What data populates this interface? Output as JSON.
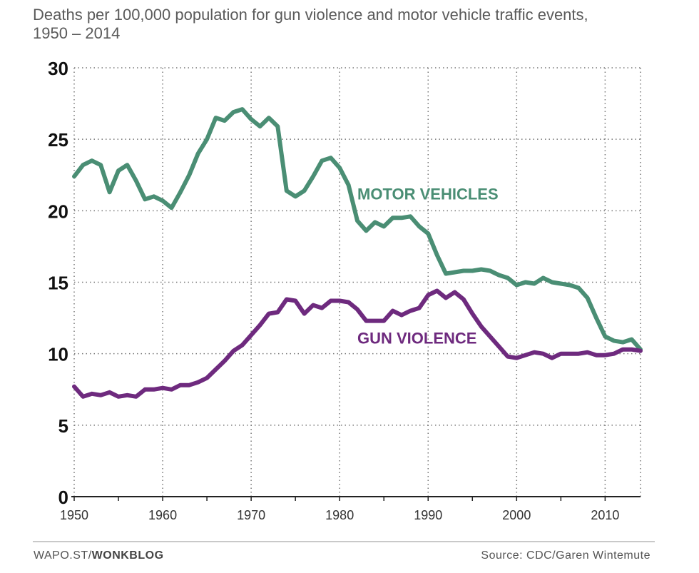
{
  "title": "Deaths per 100,000 population for gun violence and motor vehicle traffic events, 1950 – 2014",
  "footer": {
    "site": "WAPO.ST/",
    "blog": "WONKBLOG",
    "source": "Source: CDC/Garen Wintemute"
  },
  "colors": {
    "motor": "#4a8e74",
    "gun": "#6e2a7e",
    "axis": "#222222",
    "grid": "#777777"
  },
  "chart_data": {
    "type": "line",
    "title": "Deaths per 100,000 population for gun violence and motor vehicle traffic events, 1950 – 2014",
    "xlabel": "",
    "ylabel": "",
    "xlim": [
      1950,
      2014
    ],
    "ylim": [
      0,
      30
    ],
    "x_ticks": [
      1950,
      1960,
      1970,
      1980,
      1990,
      2000,
      2010
    ],
    "y_ticks": [
      0,
      5,
      10,
      15,
      20,
      25,
      30
    ],
    "grid": true,
    "series": [
      {
        "name": "MOTOR VEHICLES",
        "label_anchor": [
          1982,
          20.8
        ],
        "x": [
          1950,
          1951,
          1952,
          1953,
          1954,
          1955,
          1956,
          1957,
          1958,
          1959,
          1960,
          1961,
          1962,
          1963,
          1964,
          1965,
          1966,
          1967,
          1968,
          1969,
          1970,
          1971,
          1972,
          1973,
          1974,
          1975,
          1976,
          1977,
          1978,
          1979,
          1980,
          1981,
          1982,
          1983,
          1984,
          1985,
          1986,
          1987,
          1988,
          1989,
          1990,
          1991,
          1992,
          1993,
          1994,
          1995,
          1996,
          1997,
          1998,
          1999,
          2000,
          2001,
          2002,
          2003,
          2004,
          2005,
          2006,
          2007,
          2008,
          2009,
          2010,
          2011,
          2012,
          2013,
          2014
        ],
        "values": [
          22.4,
          23.2,
          23.5,
          23.2,
          21.3,
          22.8,
          23.2,
          22.1,
          20.8,
          21.0,
          20.7,
          20.2,
          21.3,
          22.5,
          24.0,
          25.0,
          26.5,
          26.3,
          26.9,
          27.1,
          26.4,
          25.9,
          26.5,
          25.9,
          21.4,
          21.0,
          21.4,
          22.4,
          23.5,
          23.7,
          23.0,
          21.8,
          19.3,
          18.6,
          19.2,
          18.9,
          19.5,
          19.5,
          19.6,
          18.9,
          18.4,
          16.9,
          15.6,
          15.7,
          15.8,
          15.8,
          15.9,
          15.8,
          15.5,
          15.3,
          14.8,
          15.0,
          14.9,
          15.3,
          15.0,
          14.9,
          14.8,
          14.6,
          13.9,
          12.5,
          11.2,
          10.9,
          10.8,
          11.0,
          10.3
        ]
      },
      {
        "name": "GUN VIOLENCE",
        "label_anchor": [
          1982,
          10.7
        ],
        "x": [
          1950,
          1951,
          1952,
          1953,
          1954,
          1955,
          1956,
          1957,
          1958,
          1959,
          1960,
          1961,
          1962,
          1963,
          1964,
          1965,
          1966,
          1967,
          1968,
          1969,
          1970,
          1971,
          1972,
          1973,
          1974,
          1975,
          1976,
          1977,
          1978,
          1979,
          1980,
          1981,
          1982,
          1983,
          1984,
          1985,
          1986,
          1987,
          1988,
          1989,
          1990,
          1991,
          1992,
          1993,
          1994,
          1995,
          1996,
          1997,
          1998,
          1999,
          2000,
          2001,
          2002,
          2003,
          2004,
          2005,
          2006,
          2007,
          2008,
          2009,
          2010,
          2011,
          2012,
          2013,
          2014
        ],
        "values": [
          7.7,
          7.0,
          7.2,
          7.1,
          7.3,
          7.0,
          7.1,
          7.0,
          7.5,
          7.5,
          7.6,
          7.5,
          7.8,
          7.8,
          8.0,
          8.3,
          8.9,
          9.5,
          10.2,
          10.6,
          11.3,
          12.0,
          12.8,
          12.9,
          13.8,
          13.7,
          12.8,
          13.4,
          13.2,
          13.7,
          13.7,
          13.6,
          13.1,
          12.3,
          12.3,
          12.3,
          13.0,
          12.7,
          13.0,
          13.2,
          14.1,
          14.4,
          13.9,
          14.3,
          13.8,
          12.8,
          11.9,
          11.2,
          10.5,
          9.8,
          9.7,
          9.9,
          10.1,
          10.0,
          9.7,
          10.0,
          10.0,
          10.0,
          10.1,
          9.9,
          9.9,
          10.0,
          10.3,
          10.3,
          10.2
        ]
      }
    ]
  }
}
